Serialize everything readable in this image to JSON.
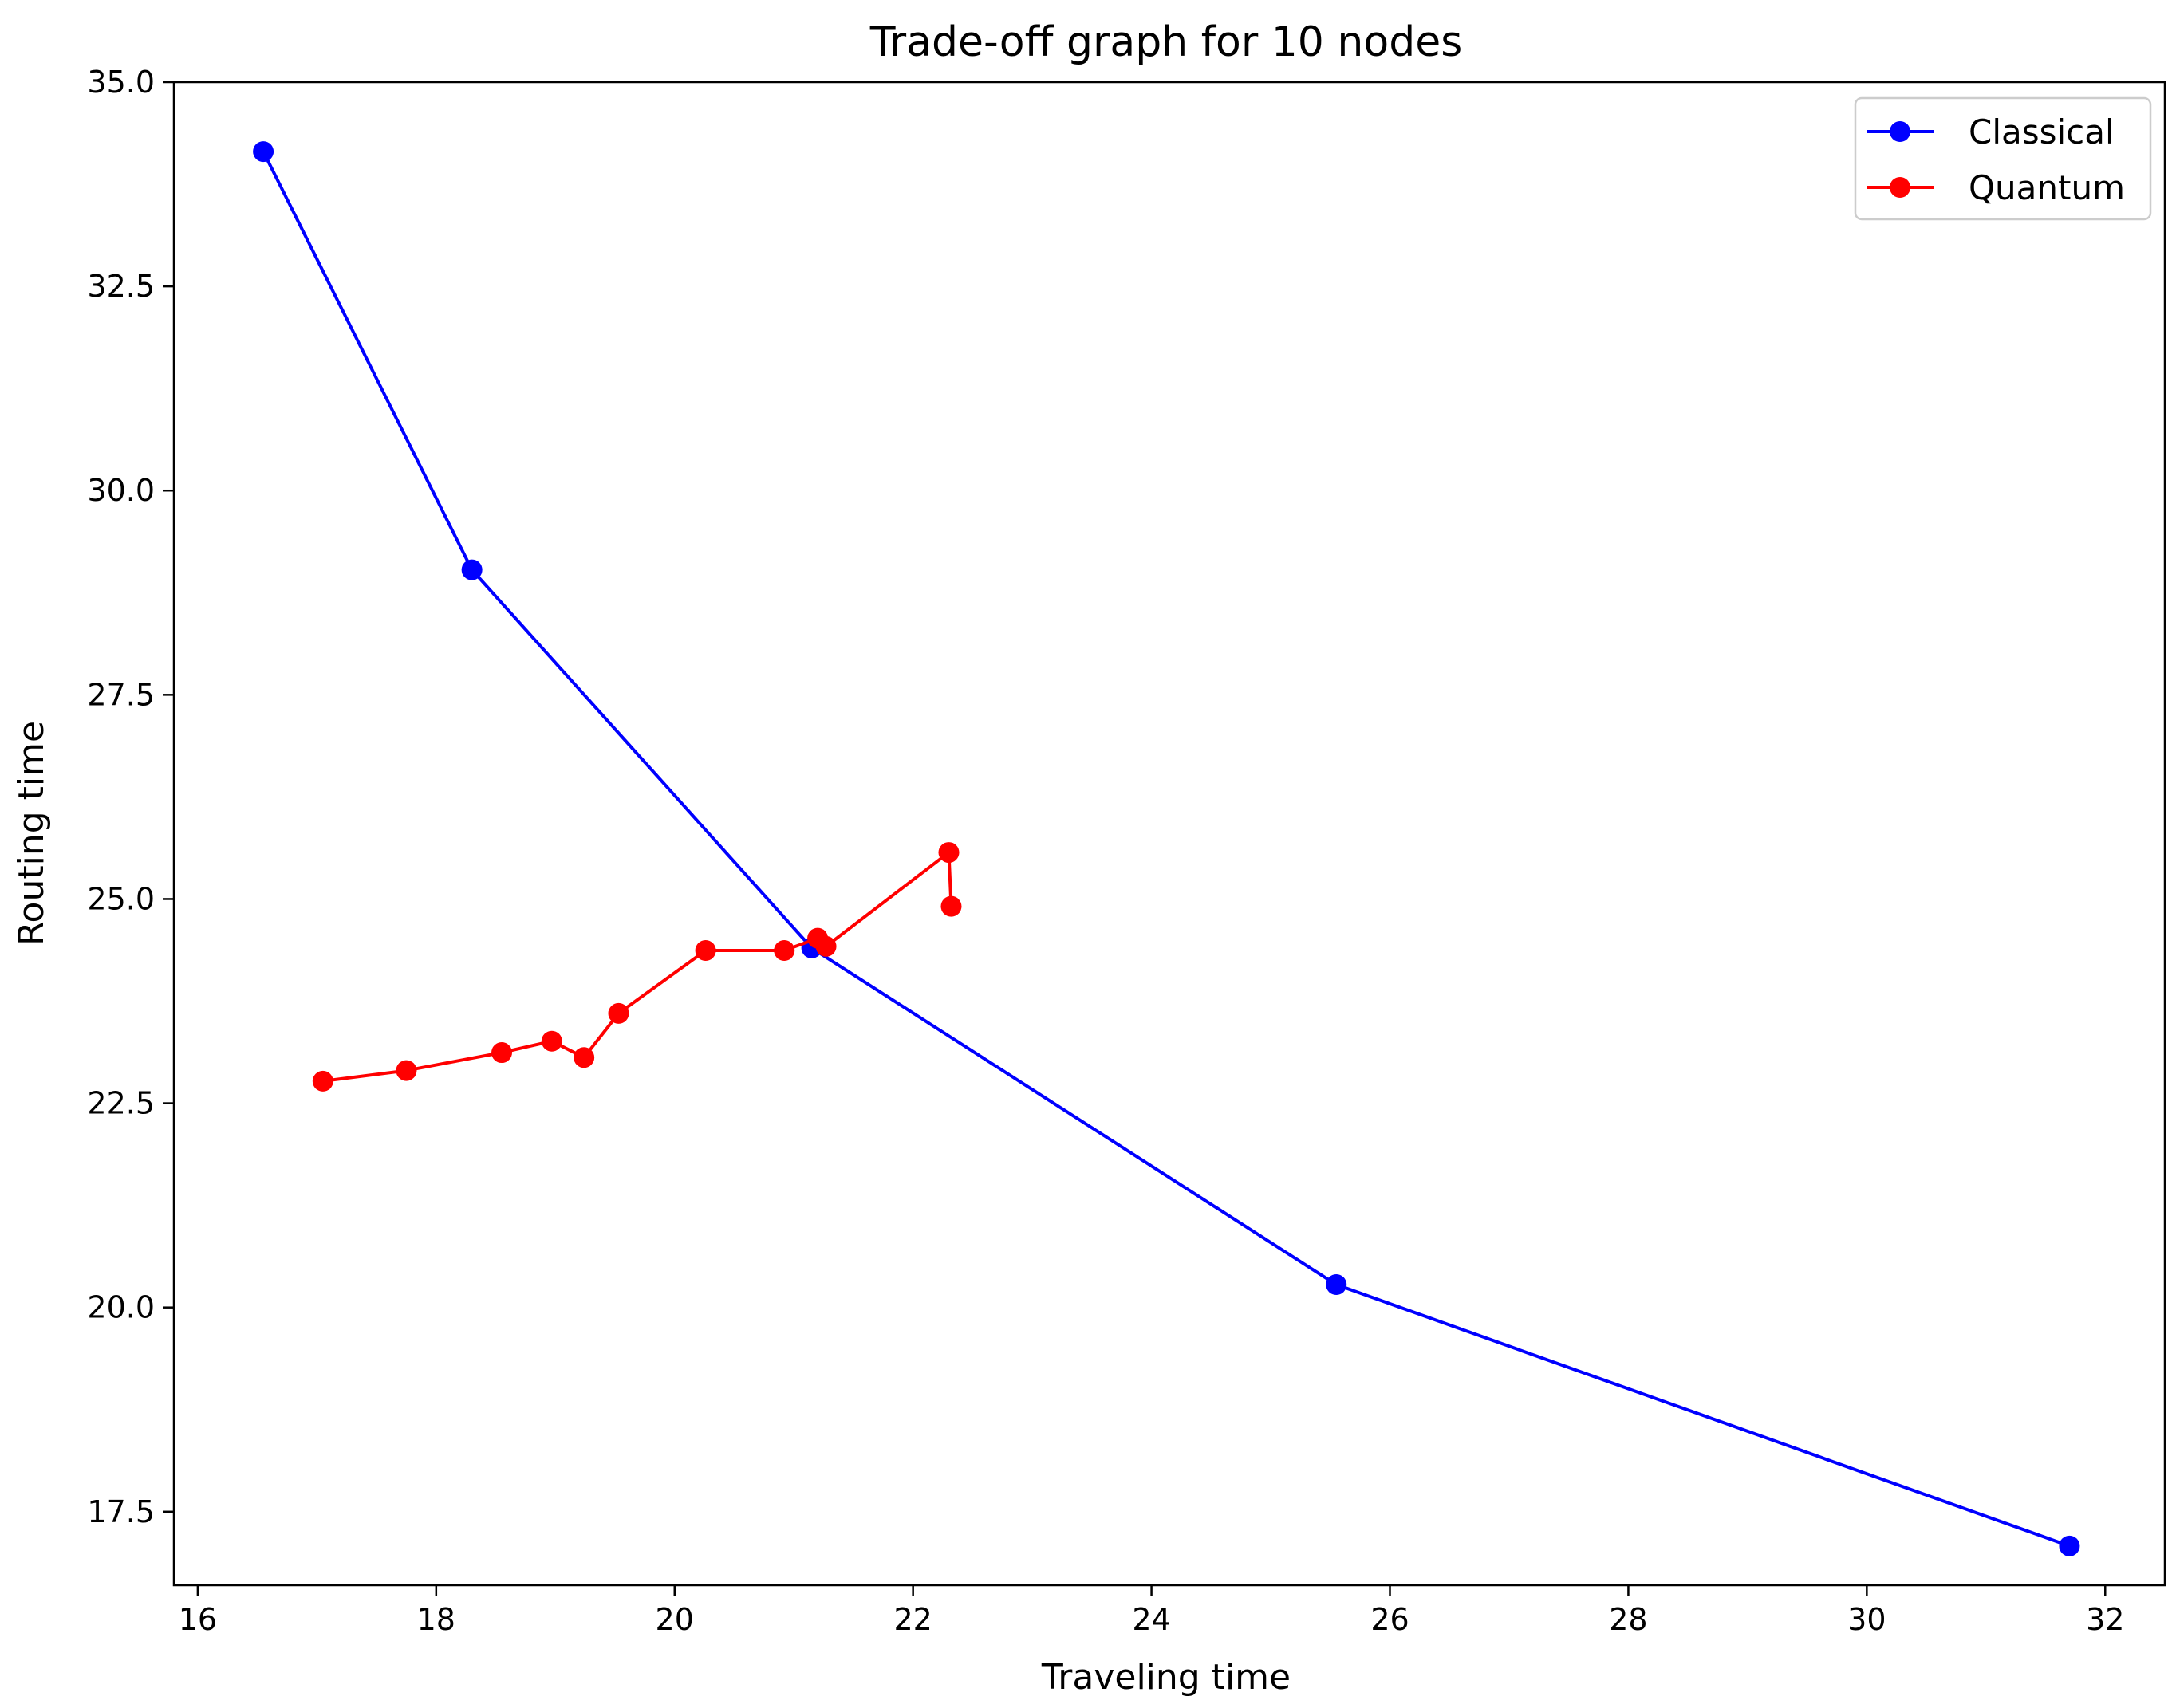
{
  "chart_data": {
    "type": "line",
    "title": "Trade-off graph for 10 nodes",
    "xlabel": "Traveling time",
    "ylabel": "Routing time",
    "xlim": [
      15.8,
      32.5
    ],
    "ylim": [
      16.6,
      35.0
    ],
    "xticks": [
      16,
      18,
      20,
      22,
      24,
      26,
      28,
      30,
      32
    ],
    "yticks": [
      17.5,
      20.0,
      22.5,
      25.0,
      27.5,
      30.0,
      32.5,
      35.0
    ],
    "xtick_labels": [
      "16",
      "18",
      "20",
      "22",
      "24",
      "26",
      "28",
      "30",
      "32"
    ],
    "ytick_labels": [
      "17.5",
      "20.0",
      "22.5",
      "25.0",
      "27.5",
      "30.0",
      "32.5",
      "35.0"
    ],
    "grid": false,
    "legend_position": "top-right",
    "series": [
      {
        "name": "Classical",
        "color": "#0000ff",
        "marker": "circle",
        "x": [
          16.55,
          18.3,
          21.15,
          25.55,
          31.7
        ],
        "y": [
          34.15,
          29.03,
          24.4,
          20.28,
          17.08
        ]
      },
      {
        "name": "Quantum",
        "color": "#ff0000",
        "marker": "circle",
        "x": [
          17.05,
          17.75,
          18.55,
          18.97,
          19.24,
          19.53,
          20.26,
          20.92,
          21.2,
          21.27,
          22.3,
          22.32
        ],
        "y": [
          22.77,
          22.9,
          23.12,
          23.26,
          23.06,
          23.6,
          24.37,
          24.37,
          24.52,
          24.42,
          25.57,
          24.91
        ]
      }
    ]
  }
}
